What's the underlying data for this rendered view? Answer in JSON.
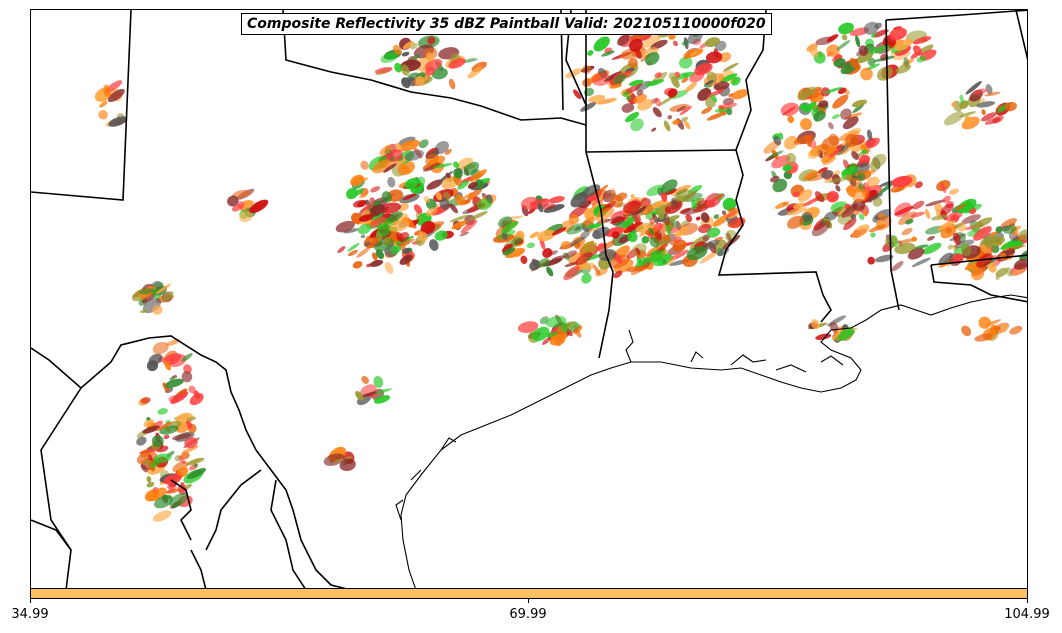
{
  "title": "Composite Reflectivity 35 dBZ Paintball Valid: 202105110000f020",
  "colorbar": {
    "color": "#fdc063",
    "ticks": [
      "34.99",
      "69.99",
      "104.99"
    ]
  },
  "member_colors": [
    "#ff3b3b",
    "#ff7f0e",
    "#e8600a",
    "#8b2a2a",
    "#22c922",
    "#2e8b2e",
    "#9a9a30",
    "#ffa640",
    "#555555",
    "#d01010"
  ]
}
